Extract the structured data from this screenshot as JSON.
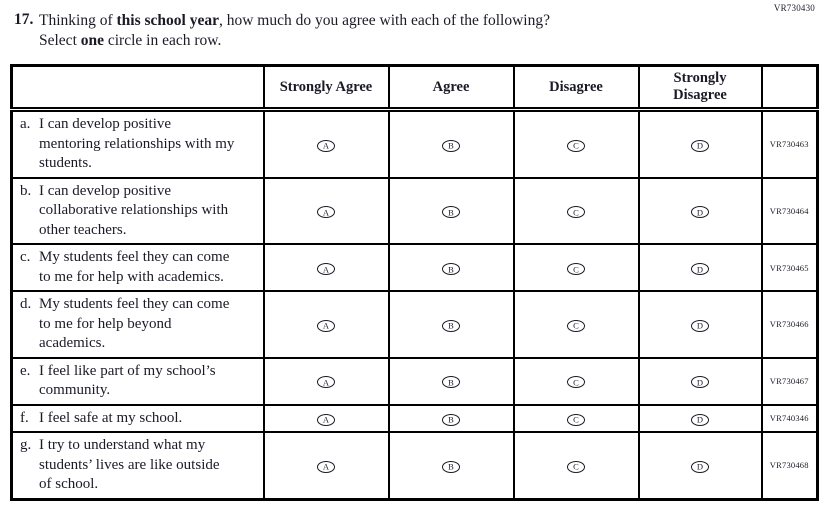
{
  "page": {
    "top_right_code": "VR730430",
    "colors": {
      "ink": "#1b1b28",
      "border": "#000000",
      "background": "#ffffff"
    }
  },
  "question": {
    "number": "17.",
    "line1": {
      "pre": "Thinking of ",
      "bold": "this school year",
      "post": ", how much do you agree with each of the following?"
    },
    "line2": {
      "pre": "Select ",
      "bold": "one",
      "post": " circle in each row."
    }
  },
  "table": {
    "headers": [
      "",
      "Strongly Agree",
      "Agree",
      "Disagree",
      "Strongly Disagree",
      ""
    ],
    "options": [
      "A",
      "B",
      "C",
      "D"
    ],
    "rows": [
      {
        "letter": "a.",
        "text": "I can develop positive mentoring relationships with my students.",
        "code": "VR730463"
      },
      {
        "letter": "b.",
        "text": "I can develop positive collaborative relationships with other teachers.",
        "code": "VR730464"
      },
      {
        "letter": "c.",
        "text": "My students feel they can come to me for help with academics.",
        "code": "VR730465"
      },
      {
        "letter": "d.",
        "text": "My students feel they can come to me for help beyond academics.",
        "code": "VR730466"
      },
      {
        "letter": "e.",
        "text": "I feel like part of my school’s community.",
        "code": "VR730467"
      },
      {
        "letter": "f.",
        "text": "I feel safe at my school.",
        "code": "VR740346"
      },
      {
        "letter": "g.",
        "text": "I try to understand what my students’ lives are like outside of school.",
        "code": "VR730468"
      }
    ]
  }
}
